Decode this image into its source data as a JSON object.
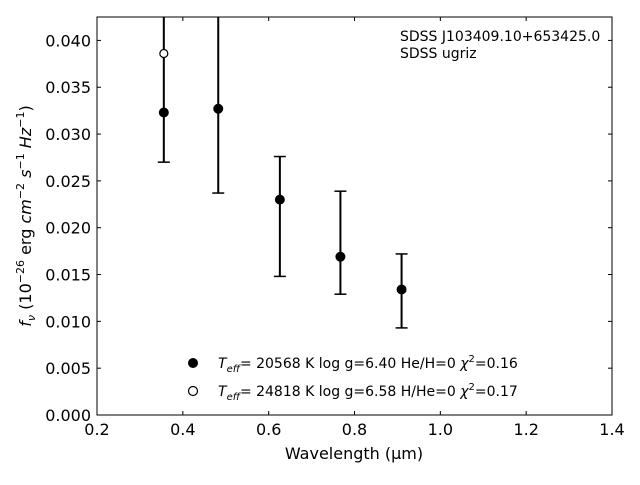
{
  "chart_data": {
    "type": "scatter",
    "annotations": [
      "SDSS J103409.10+653425.0",
      "SDSS ugriz"
    ],
    "xlabel": "Wavelength (μm)",
    "ylabel_parts": {
      "f": "f",
      "nu": "ν",
      "open": " (10",
      "exp1": "−26",
      "erg": " erg ",
      "cm": "cm",
      "exp2": "−2",
      "space": " ",
      "s": "s",
      "exp3": "−1",
      "hz": " Hz",
      "exp4": "−1",
      "close": ")"
    },
    "xlim": [
      0.2,
      1.4
    ],
    "ylim": [
      0.0,
      0.0425
    ],
    "x_ticks": [
      "0.2",
      "0.4",
      "0.6",
      "0.8",
      "1.0",
      "1.2",
      "1.4"
    ],
    "y_ticks": [
      "0.000",
      "0.005",
      "0.010",
      "0.015",
      "0.020",
      "0.025",
      "0.030",
      "0.035",
      "0.040"
    ],
    "observed": {
      "x": [
        0.3557,
        0.4825,
        0.6261,
        0.7672,
        0.9097
      ],
      "y": [
        0.0323,
        0.0327,
        0.023,
        0.0168,
        0.0134
      ],
      "yerr_low": [
        0.027,
        0.0237,
        0.0148,
        0.0129,
        0.0093
      ],
      "yerr_high": [
        0.045,
        0.045,
        0.0276,
        0.0239,
        0.0172
      ]
    },
    "series": [
      {
        "marker": "filled",
        "x": [
          0.3557,
          0.4825,
          0.6261,
          0.7672,
          0.9097
        ],
        "y": [
          0.0323,
          0.0327,
          0.023,
          0.0169,
          0.0134
        ],
        "legend": {
          "T": "T",
          "eff": "eff",
          "value": "= 20568 K  log g=6.40  He/H=0  ",
          "chi": "χ",
          "two": "2",
          "chi_value": "=0.16"
        }
      },
      {
        "marker": "open",
        "x": [
          0.3557
        ],
        "y": [
          0.0386
        ],
        "legend": {
          "T": "T",
          "eff": "eff",
          "value": "= 24818 K  log g=6.58  H/He=0  ",
          "chi": "χ",
          "two": "2",
          "chi_value": "=0.17"
        }
      }
    ],
    "grid": false,
    "legend_position": "lower-center"
  }
}
